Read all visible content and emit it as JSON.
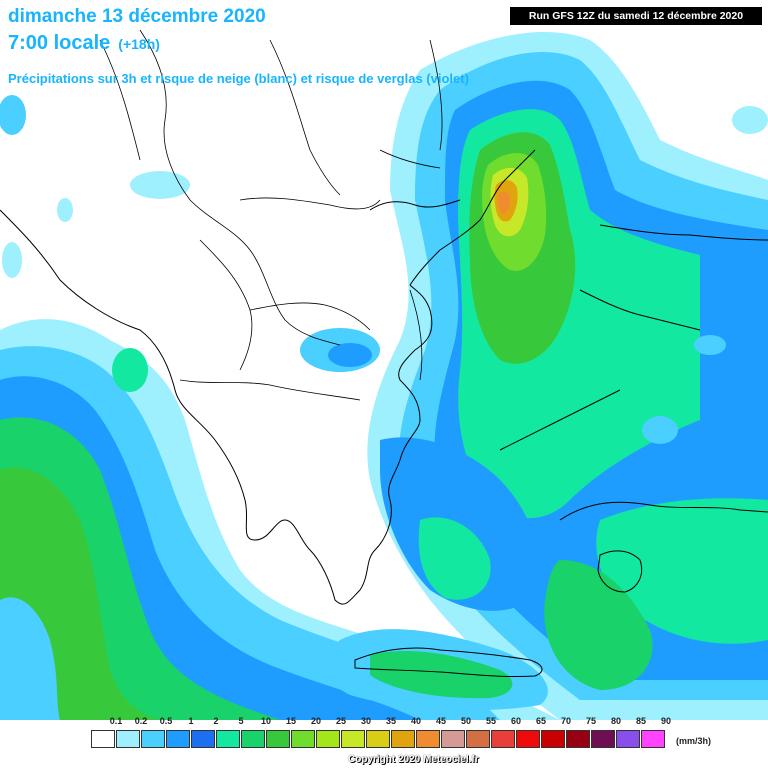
{
  "title": {
    "date": "dimanche 13 décembre 2020",
    "time": "7:00 locale",
    "lead": "(+18h)",
    "subtitle": "Précipitations sur 3h et risque de neige (blanc) et risque de verglas (violet)"
  },
  "run": "Run GFS 12Z du samedi 12 décembre 2020",
  "legend": {
    "ticks": [
      "0.1",
      "0.2",
      "0.5",
      "1",
      "2",
      "5",
      "10",
      "15",
      "20",
      "25",
      "30",
      "35",
      "40",
      "45",
      "50",
      "55",
      "60",
      "65",
      "70",
      "75",
      "80",
      "85",
      "90"
    ],
    "colors": [
      "#ffffff",
      "#9ef0ff",
      "#4bcfff",
      "#1e9dff",
      "#1d6ff2",
      "#13e8a0",
      "#19d26a",
      "#38c83b",
      "#6fdc2e",
      "#a3e61c",
      "#c7e829",
      "#d9ce16",
      "#e2a40e",
      "#f08c30",
      "#d49a96",
      "#d46e43",
      "#e83f3a",
      "#f00a0a",
      "#c80000",
      "#960012",
      "#700e54",
      "#8a4eea",
      "#ff44ff"
    ],
    "unit": "(mm/3h)"
  },
  "copyright": "Copyright 2020 Meteociel.fr"
}
